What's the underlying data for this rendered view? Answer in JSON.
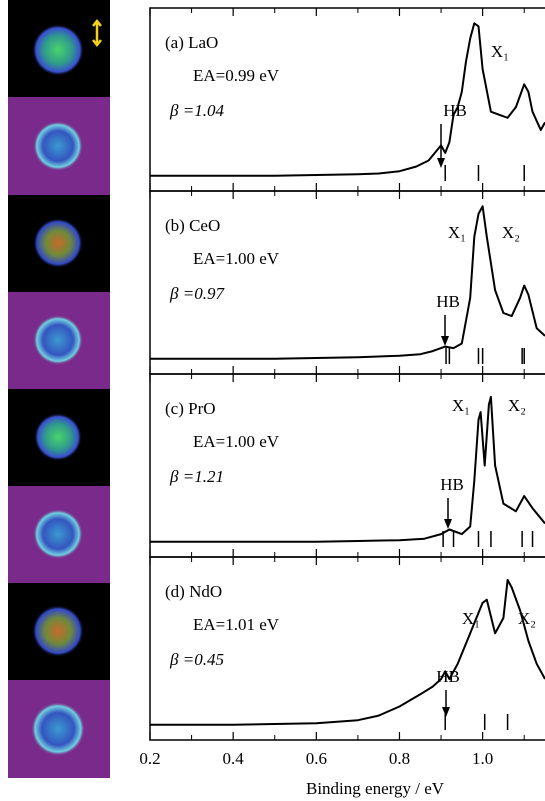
{
  "chart_data": [
    {
      "type": "line",
      "title": "(a) LaO",
      "ea": "EA=0.99 eV",
      "beta": "β =1.04",
      "xlim": [
        0.2,
        1.15
      ],
      "ylim": [
        -0.1,
        1.1
      ],
      "color": "#000000",
      "x": [
        0.2,
        0.3,
        0.4,
        0.5,
        0.6,
        0.7,
        0.75,
        0.8,
        0.84,
        0.87,
        0.9,
        0.91,
        0.92,
        0.93,
        0.94,
        0.95,
        0.96,
        0.97,
        0.98,
        0.99,
        1.0,
        1.02,
        1.04,
        1.06,
        1.08,
        1.1,
        1.11,
        1.12,
        1.14,
        1.15
      ],
      "values": [
        0,
        0,
        0,
        0,
        0.005,
        0.01,
        0.015,
        0.03,
        0.06,
        0.1,
        0.2,
        0.15,
        0.22,
        0.4,
        0.45,
        0.55,
        0.75,
        0.9,
        1.0,
        0.98,
        0.7,
        0.42,
        0.4,
        0.38,
        0.45,
        0.6,
        0.55,
        0.42,
        0.3,
        0.35
      ],
      "sticks": [
        0.91,
        0.99,
        1.1
      ],
      "annotations": [
        "HB",
        "X₁"
      ]
    },
    {
      "type": "line",
      "title": "(b) CeO",
      "ea": "EA=1.00 eV",
      "beta": "β =0.97",
      "xlim": [
        0.2,
        1.15
      ],
      "ylim": [
        -0.1,
        1.1
      ],
      "color": "#000000",
      "x": [
        0.2,
        0.3,
        0.4,
        0.5,
        0.6,
        0.7,
        0.8,
        0.85,
        0.88,
        0.91,
        0.93,
        0.95,
        0.97,
        0.98,
        0.99,
        1.0,
        1.01,
        1.03,
        1.05,
        1.07,
        1.09,
        1.1,
        1.11,
        1.13,
        1.15
      ],
      "values": [
        0,
        0,
        0,
        0,
        0.005,
        0.01,
        0.02,
        0.03,
        0.05,
        0.08,
        0.07,
        0.1,
        0.4,
        0.8,
        0.95,
        1.0,
        0.8,
        0.45,
        0.3,
        0.28,
        0.4,
        0.48,
        0.42,
        0.2,
        0.15
      ],
      "sticks": [
        0.912,
        0.92,
        0.99,
        1.0,
        1.095,
        1.1
      ],
      "annotations": [
        "X₁",
        "X₂",
        "HB"
      ]
    },
    {
      "type": "line",
      "title": "(c) PrO",
      "ea": "EA=1.00 eV",
      "beta": "β =1.21",
      "xlim": [
        0.2,
        1.15
      ],
      "ylim": [
        -0.1,
        1.1
      ],
      "color": "#000000",
      "x": [
        0.2,
        0.3,
        0.4,
        0.5,
        0.6,
        0.7,
        0.8,
        0.86,
        0.9,
        0.92,
        0.95,
        0.97,
        0.98,
        0.99,
        0.995,
        1.005,
        1.015,
        1.02,
        1.03,
        1.05,
        1.08,
        1.1,
        1.12,
        1.15
      ],
      "values": [
        0,
        0,
        0,
        0,
        0,
        0.005,
        0.01,
        0.02,
        0.05,
        0.08,
        0.05,
        0.1,
        0.4,
        0.8,
        0.85,
        0.5,
        0.9,
        0.95,
        0.5,
        0.25,
        0.2,
        0.3,
        0.22,
        0.12
      ],
      "sticks": [
        0.905,
        0.93,
        0.99,
        1.02,
        1.095,
        1.12
      ],
      "annotations": [
        "X₁",
        "X₂",
        "HB"
      ]
    },
    {
      "type": "line",
      "title": "(d) NdO",
      "ea": "EA=1.01 eV",
      "beta": "β =0.45",
      "xlim": [
        0.2,
        1.15
      ],
      "ylim": [
        -0.1,
        1.1
      ],
      "color": "#000000",
      "x": [
        0.2,
        0.3,
        0.4,
        0.5,
        0.6,
        0.7,
        0.75,
        0.8,
        0.85,
        0.88,
        0.9,
        0.91,
        0.92,
        0.94,
        0.97,
        1.0,
        1.01,
        1.03,
        1.05,
        1.06,
        1.07,
        1.09,
        1.11,
        1.13,
        1.15
      ],
      "values": [
        0,
        0,
        0,
        0.005,
        0.01,
        0.03,
        0.06,
        0.12,
        0.2,
        0.25,
        0.3,
        0.35,
        0.3,
        0.4,
        0.6,
        0.8,
        0.82,
        0.6,
        0.7,
        0.95,
        0.9,
        0.75,
        0.55,
        0.4,
        0.3
      ],
      "sticks": [
        0.91,
        1.005,
        1.06
      ],
      "annotations": [
        "X₁",
        "X₂",
        "HB"
      ],
      "xticks": [
        0.2,
        0.4,
        0.6,
        {
          "value": 0.8,
          "label": "0.8"
        },
        {
          "value": 1.0,
          "label": "1.0"
        }
      ],
      "x_label": "Binding energy / eV"
    }
  ]
}
